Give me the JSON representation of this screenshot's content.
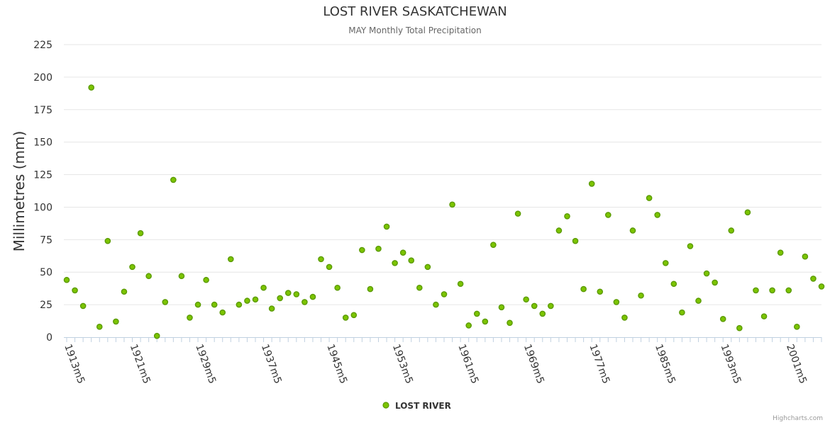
{
  "chart_data": {
    "type": "scatter",
    "title": "LOST RIVER SASKATCHEWAN",
    "subtitle": "MAY Monthly Total Precipitation",
    "ylabel": "Millimetres (mm)",
    "xlabel": "",
    "ylim": [
      0,
      225
    ],
    "yticks": [
      "225",
      "200",
      "175",
      "150",
      "125",
      "100",
      "75",
      "50",
      "25",
      "0"
    ],
    "xticks": [
      {
        "label": "1913m5",
        "year": 1913
      },
      {
        "label": "1921m5",
        "year": 1921
      },
      {
        "label": "1929m5",
        "year": 1929
      },
      {
        "label": "1937m5",
        "year": 1937
      },
      {
        "label": "1945m5",
        "year": 1945
      },
      {
        "label": "1953m5",
        "year": 1953
      },
      {
        "label": "1961m5",
        "year": 1961
      },
      {
        "label": "1969m5",
        "year": 1969
      },
      {
        "label": "1977m5",
        "year": 1977
      },
      {
        "label": "1985m5",
        "year": 1985
      },
      {
        "label": "1993m5",
        "year": 1993
      },
      {
        "label": "2001m5",
        "year": 2001
      }
    ],
    "xlim": [
      1913,
      2005
    ],
    "grid": true,
    "legend": "bottom-center",
    "series": [
      {
        "name": "LOST RIVER",
        "color": "#5a9a00",
        "fill": "#7cc400",
        "x": [
          1913,
          1914,
          1915,
          1916,
          1917,
          1918,
          1919,
          1920,
          1921,
          1922,
          1923,
          1924,
          1925,
          1926,
          1927,
          1928,
          1929,
          1930,
          1931,
          1932,
          1933,
          1934,
          1935,
          1936,
          1937,
          1938,
          1939,
          1940,
          1941,
          1942,
          1943,
          1944,
          1945,
          1946,
          1947,
          1948,
          1949,
          1950,
          1951,
          1952,
          1953,
          1954,
          1955,
          1956,
          1957,
          1958,
          1959,
          1960,
          1961,
          1962,
          1963,
          1964,
          1965,
          1966,
          1967,
          1968,
          1969,
          1970,
          1971,
          1972,
          1973,
          1974,
          1975,
          1976,
          1977,
          1978,
          1979,
          1980,
          1981,
          1982,
          1983,
          1984,
          1985,
          1986,
          1987,
          1988,
          1989,
          1990,
          1991,
          1992,
          1993,
          1994,
          1995,
          1996,
          1997,
          1998,
          1999,
          2000,
          2001,
          2002,
          2003,
          2004,
          2005
        ],
        "y": [
          44,
          36,
          24,
          192,
          8,
          74,
          12,
          35,
          54,
          80,
          47,
          1,
          27,
          121,
          47,
          15,
          25,
          44,
          25,
          19,
          60,
          25,
          28,
          29,
          38,
          22,
          30,
          34,
          33,
          27,
          31,
          60,
          54,
          38,
          15,
          17,
          67,
          37,
          68,
          85,
          57,
          65,
          59,
          38,
          54,
          25,
          33,
          102,
          41,
          9,
          18,
          12,
          71,
          23,
          11,
          95,
          29,
          24,
          18,
          24,
          82,
          93,
          74,
          37,
          118,
          35,
          94,
          27,
          15,
          82,
          32,
          107,
          94,
          57,
          41,
          19,
          70,
          28,
          49,
          42,
          14,
          82,
          7,
          96,
          36,
          16,
          36,
          65,
          36,
          8,
          62,
          45,
          39
        ]
      }
    ]
  },
  "credits": "Highcharts.com"
}
